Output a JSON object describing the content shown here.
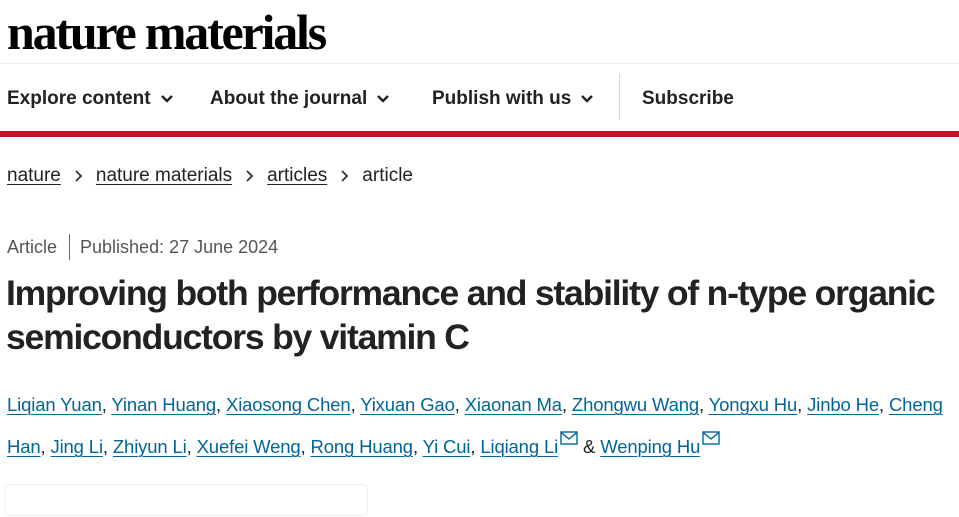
{
  "site": {
    "logo": "nature materials"
  },
  "nav": {
    "items": [
      {
        "label": "Explore content",
        "dropdown": true
      },
      {
        "label": "About the journal",
        "dropdown": true
      },
      {
        "label": "Publish with us",
        "dropdown": true
      },
      {
        "label": "Subscribe",
        "dropdown": false
      }
    ]
  },
  "breadcrumb": {
    "items": [
      "nature",
      "nature materials",
      "articles",
      "article"
    ]
  },
  "article": {
    "type": "Article",
    "published": "Published: 27 June 2024",
    "title": "Improving both performance and stability of n-type organic semiconductors by vitamin C",
    "authors": [
      "Liqian Yuan",
      "Yinan Huang",
      "Xiaosong Chen",
      "Yixuan Gao",
      "Xiaonan Ma",
      "Zhongwu Wang",
      "Yongxu Hu",
      "Jinbo He",
      "Cheng Han",
      "Jing Li",
      "Zhiyun Li",
      "Xuefei Weng",
      "Rong Huang",
      "Yi Cui",
      "Liqiang Li",
      "Wenping Hu"
    ],
    "separator": ", ",
    "and": " & "
  },
  "colors": {
    "accent_bar": "#c0142b",
    "link": "#006699",
    "text": "#222222"
  }
}
